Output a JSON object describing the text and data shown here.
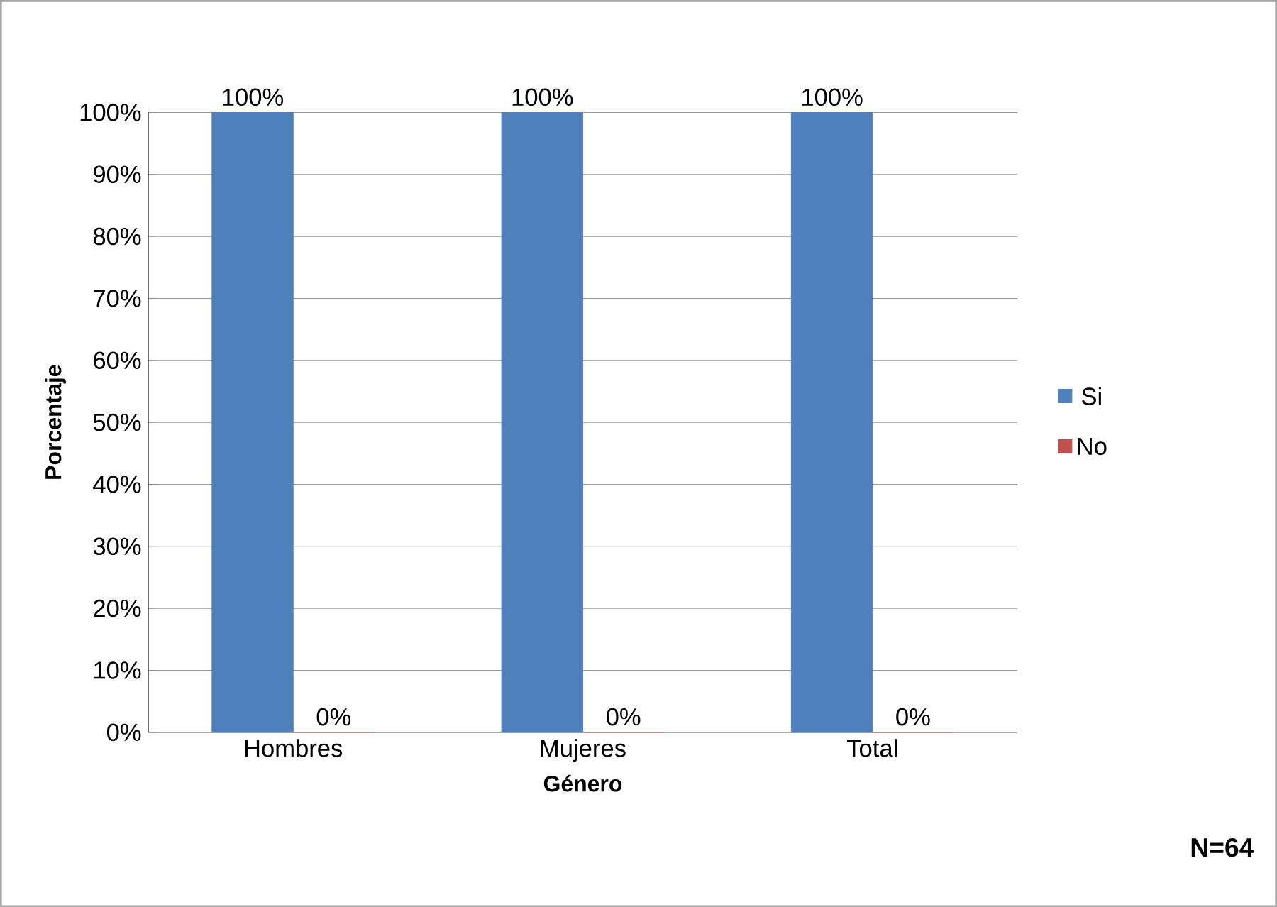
{
  "chart_data": {
    "type": "bar",
    "xlabel": "Género",
    "ylabel": "Porcentaje",
    "categories": [
      "Hombres",
      "Mujeres",
      "Total"
    ],
    "series": [
      {
        "name": "Si",
        "color": "#4f81bd",
        "values": [
          100,
          100,
          100
        ],
        "value_labels": [
          "100%",
          "100%",
          "100%"
        ]
      },
      {
        "name": "No",
        "color": "#c0504d",
        "values": [
          0,
          0,
          0
        ],
        "value_labels": [
          "0%",
          "0%",
          "0%"
        ]
      }
    ],
    "ylim": [
      0,
      100
    ],
    "yticks": [
      {
        "value": 0,
        "label": "0%"
      },
      {
        "value": 10,
        "label": "10%"
      },
      {
        "value": 20,
        "label": "20%"
      },
      {
        "value": 30,
        "label": "30%"
      },
      {
        "value": 40,
        "label": "40%"
      },
      {
        "value": 50,
        "label": "50%"
      },
      {
        "value": 60,
        "label": "60%"
      },
      {
        "value": 70,
        "label": "70%"
      },
      {
        "value": 80,
        "label": "80%"
      },
      {
        "value": 90,
        "label": "90%"
      },
      {
        "value": 100,
        "label": "100%"
      }
    ],
    "grid": "y",
    "legend": "right",
    "annotations": [
      "N=64"
    ]
  }
}
